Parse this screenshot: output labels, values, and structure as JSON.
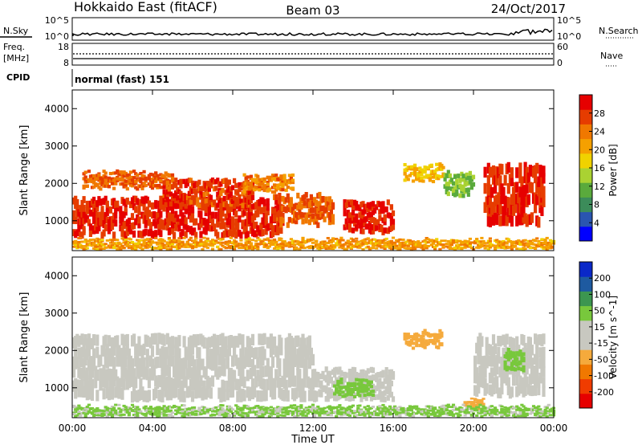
{
  "header": {
    "site": "Hokkaido East (fitACF)",
    "beam": "Beam 03",
    "date": "24/Oct/2017"
  },
  "small_panels": {
    "nsky_label": "N.Sky",
    "nsearch_label": "N.Search",
    "noise_ticks": [
      "10^5",
      "10^0"
    ],
    "freq_label_1": "Freq.",
    "freq_label_2": "[MHz]",
    "freq_ticks": [
      "18",
      "8"
    ],
    "nave_label": "Nave",
    "nave_ticks": [
      "60",
      "0"
    ],
    "cpid_label": "CPID",
    "cpid_value": "normal (fast) 151"
  },
  "colors": {
    "power": [
      "#0000ff",
      "#2a55b0",
      "#3c8c5a",
      "#5aaa3c",
      "#aad232",
      "#f0d200",
      "#f5a000",
      "#f07800",
      "#e63c00",
      "#e60000"
    ],
    "velocity": [
      "#e60000",
      "#f03c00",
      "#f07800",
      "#f5aa3c",
      "#c8c8c0",
      "#c8c8c0",
      "#78c83c",
      "#3c9650",
      "#1e5aa0",
      "#0a28c8"
    ]
  },
  "chart_data": [
    {
      "type": "heatmap",
      "panel": "power",
      "ylabel": "Slant Range [km]",
      "yticks": [
        "1000",
        "2000",
        "3000",
        "4000"
      ],
      "ylim": [
        200,
        4500
      ],
      "colorbar_label": "Power [dB]",
      "colorbar_ticks": [
        "4",
        "8",
        "12",
        "16",
        "20",
        "24",
        "28"
      ],
      "clim": [
        0,
        30
      ],
      "bands": [
        {
          "t0": 0.0,
          "t1": 10.5,
          "r0": 600,
          "r1": 1600,
          "v": 27
        },
        {
          "t0": 0.5,
          "t1": 5.0,
          "r0": 1900,
          "r1": 2300,
          "v": 24
        },
        {
          "t0": 4.5,
          "t1": 9.0,
          "r0": 1400,
          "r1": 2100,
          "v": 26
        },
        {
          "t0": 8.5,
          "t1": 11.0,
          "r0": 1800,
          "r1": 2200,
          "v": 22
        },
        {
          "t0": 10.0,
          "t1": 13.0,
          "r0": 900,
          "r1": 1700,
          "v": 24
        },
        {
          "t0": 13.5,
          "t1": 16.0,
          "r0": 700,
          "r1": 1500,
          "v": 28
        },
        {
          "t0": 16.5,
          "t1": 18.5,
          "r0": 2100,
          "r1": 2500,
          "v": 18
        },
        {
          "t0": 18.5,
          "t1": 20.0,
          "r0": 1700,
          "r1": 2300,
          "v": 12
        },
        {
          "t0": 20.5,
          "t1": 23.5,
          "r0": 900,
          "r1": 2500,
          "v": 27
        },
        {
          "t0": 0.0,
          "t1": 24.0,
          "r0": 250,
          "r1": 500,
          "v": 20
        }
      ]
    },
    {
      "type": "heatmap",
      "panel": "velocity",
      "ylabel": "Slant Range [km]",
      "yticks": [
        "1000",
        "2000",
        "3000",
        "4000"
      ],
      "ylim": [
        200,
        4500
      ],
      "colorbar_label": "Velocity [m s^-1]",
      "colorbar_ticks": [
        "-200",
        "-100",
        "-50",
        "-15",
        "15",
        "50",
        "100",
        "200"
      ],
      "bands": [
        {
          "t0": 0.0,
          "t1": 12.0,
          "r0": 700,
          "r1": 2400,
          "v": 0
        },
        {
          "t0": 12.0,
          "t1": 16.0,
          "r0": 700,
          "r1": 1500,
          "v": 0
        },
        {
          "t0": 13.0,
          "t1": 15.0,
          "r0": 800,
          "r1": 1200,
          "v": 40
        },
        {
          "t0": 16.5,
          "t1": 18.5,
          "r0": 2100,
          "r1": 2500,
          "v": -60
        },
        {
          "t0": 19.5,
          "t1": 20.5,
          "r0": 500,
          "r1": 700,
          "v": -70
        },
        {
          "t0": 20.0,
          "t1": 23.5,
          "r0": 800,
          "r1": 2400,
          "v": 0
        },
        {
          "t0": 21.5,
          "t1": 22.5,
          "r0": 1500,
          "r1": 2000,
          "v": 30
        },
        {
          "t0": 0.0,
          "t1": 24.0,
          "r0": 250,
          "r1": 500,
          "v": 20
        }
      ]
    }
  ],
  "time_axis": {
    "label": "Time UT",
    "ticks": [
      "00:00",
      "04:00",
      "08:00",
      "12:00",
      "16:00",
      "20:00",
      "00:00"
    ],
    "range_hours": [
      0,
      24
    ]
  }
}
